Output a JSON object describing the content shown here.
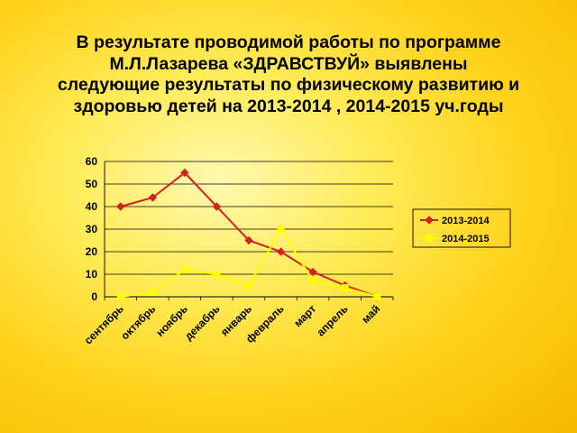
{
  "slide": {
    "title_lines": [
      "В результате проводимой работы по программе",
      "М.Л.Лазарева «ЗДРАВСТВУЙ» выявлены",
      "следующие результаты по физическому развитию и",
      "здоровью детей на 2013-2014 , 2014-2015 уч.годы"
    ]
  },
  "chart_data": {
    "type": "line",
    "categories": [
      "сентябрь",
      "октябрь",
      "ноябрь",
      "декабрь",
      "январь",
      "февраль",
      "март",
      "апрель",
      "май"
    ],
    "series": [
      {
        "name": "2013-2014",
        "values": [
          40,
          44,
          55,
          40,
          25,
          20,
          11,
          5,
          0
        ],
        "color": "#d42020",
        "marker": "diamond"
      },
      {
        "name": "2014-2015",
        "values": [
          0,
          2,
          12,
          10,
          5,
          30,
          7,
          4,
          0
        ],
        "color": "#ffff00",
        "marker": "square"
      }
    ],
    "ylim": [
      0,
      60
    ],
    "yticks": [
      "0",
      "10",
      "20",
      "30",
      "40",
      "50",
      "60"
    ],
    "grid": true,
    "legend_position": "right"
  }
}
